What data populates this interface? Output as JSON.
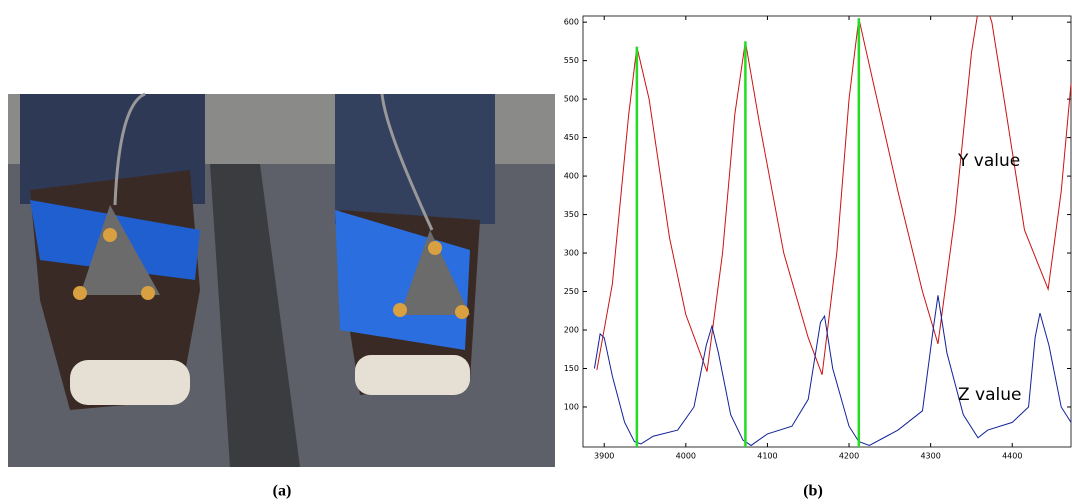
{
  "captions": [
    "(a)",
    "(b)"
  ],
  "chart_data": {
    "type": "line",
    "annotations": [
      "Y value",
      "Z value"
    ],
    "xlim": [
      3874,
      4472
    ],
    "ylim": [
      48,
      608
    ],
    "xticks": [
      3900,
      4000,
      4100,
      4200,
      4300,
      4400
    ],
    "yticks": [
      100,
      150,
      200,
      250,
      300,
      350,
      400,
      450,
      500,
      550,
      600
    ],
    "series": [
      {
        "color": "#cc1111",
        "x": [
          3891,
          3910,
          3930,
          3940,
          3955,
          3980,
          4000,
          4026,
          4045,
          4060,
          4073,
          4090,
          4120,
          4150,
          4167,
          4185,
          4200,
          4212,
          4230,
          4260,
          4290,
          4309,
          4330,
          4350,
          4362,
          4375,
          4390,
          4415,
          4444,
          4460,
          4472
        ],
        "values": [
          148,
          260,
          480,
          568,
          500,
          320,
          220,
          146,
          300,
          480,
          575,
          470,
          300,
          190,
          142,
          300,
          500,
          605,
          520,
          380,
          250,
          182,
          350,
          560,
          640,
          600,
          500,
          330,
          253,
          380,
          520
        ]
      },
      {
        "color": "#112299",
        "x": [
          3888,
          3895,
          3900,
          3910,
          3925,
          3937,
          3945,
          3960,
          3990,
          4010,
          4025,
          4032,
          4040,
          4055,
          4070,
          4080,
          4100,
          4130,
          4150,
          4165,
          4170,
          4180,
          4200,
          4212,
          4225,
          4260,
          4290,
          4303,
          4309,
          4320,
          4340,
          4358,
          4370,
          4400,
          4420,
          4428,
          4434,
          4445,
          4460,
          4472
        ],
        "values": [
          150,
          195,
          190,
          140,
          80,
          55,
          52,
          62,
          70,
          100,
          180,
          205,
          170,
          90,
          57,
          50,
          65,
          75,
          110,
          210,
          218,
          150,
          75,
          55,
          50,
          70,
          95,
          200,
          245,
          170,
          90,
          60,
          70,
          80,
          100,
          190,
          222,
          180,
          100,
          80
        ]
      }
    ],
    "peak_lines": {
      "color": "#22dd22",
      "x": [
        3940,
        4073,
        4212
      ],
      "values": [
        568,
        575,
        605
      ]
    }
  }
}
